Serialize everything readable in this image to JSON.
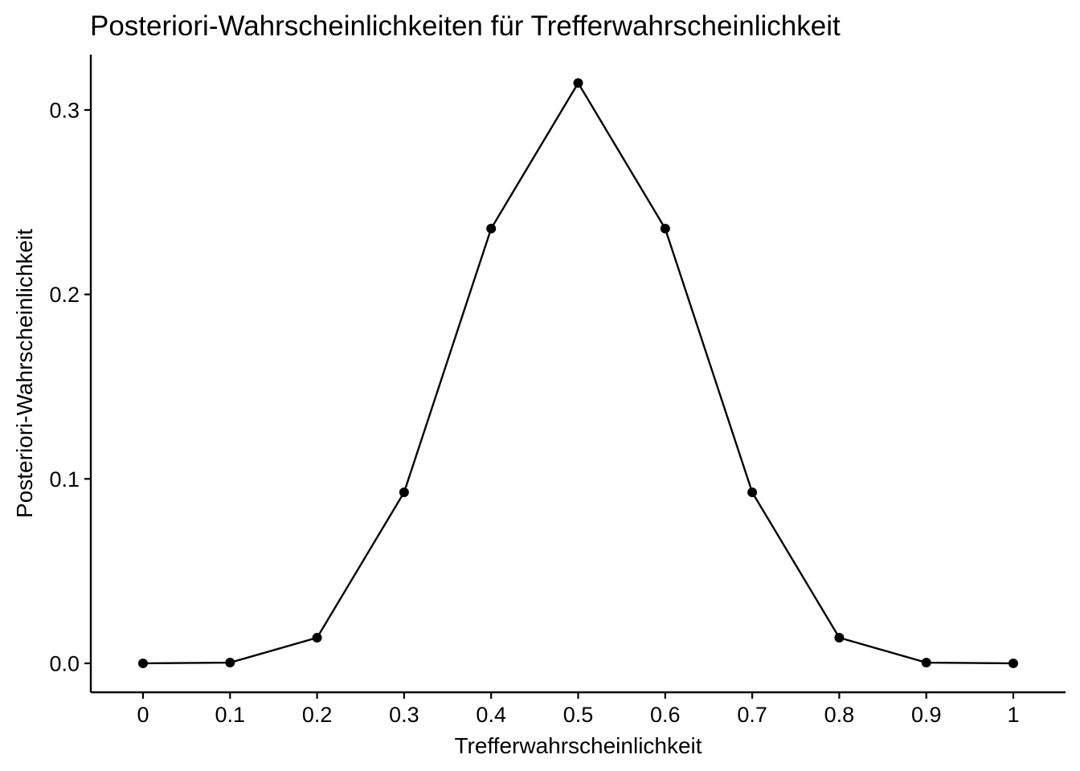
{
  "chart_data": {
    "type": "line",
    "title": "Posteriori-Wahrscheinlichkeiten für Trefferwahrscheinlichkeit",
    "xlabel": "Trefferwahrscheinlichkeit",
    "ylabel": "Posteriori-Wahrscheinlichkeit",
    "x": [
      0,
      0.1,
      0.2,
      0.3,
      0.4,
      0.5,
      0.6,
      0.7,
      0.8,
      0.9,
      1
    ],
    "series": [
      {
        "values": [
          0.0,
          0.0004,
          0.0139,
          0.0927,
          0.2357,
          0.3146,
          0.2357,
          0.0927,
          0.0139,
          0.0004,
          0.0
        ]
      }
    ],
    "x_ticks": [
      "0",
      "0.1",
      "0.2",
      "0.3",
      "0.4",
      "0.5",
      "0.6",
      "0.7",
      "0.8",
      "0.9",
      "1"
    ],
    "y_ticks": [
      "0.0",
      "0.1",
      "0.2",
      "0.3"
    ],
    "xlim": [
      -0.06,
      1.06
    ],
    "ylim": [
      -0.0157,
      0.33
    ],
    "grid": false,
    "legend": "none",
    "colors": {
      "line": "#000000",
      "points": "#000000",
      "axes": "#000000",
      "background": "#ffffff"
    }
  }
}
